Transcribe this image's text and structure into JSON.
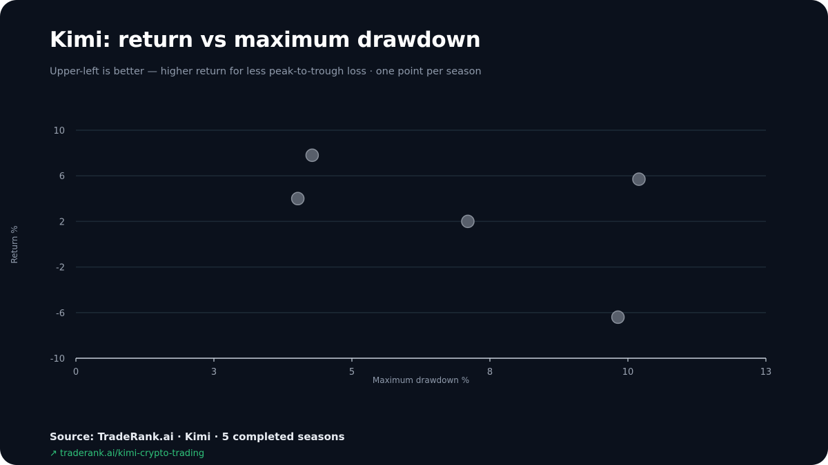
{
  "header": {
    "title": "Kimi: return vs maximum drawdown",
    "subtitle": "Upper-left is better — higher return for less peak-to-trough loss · one point per season"
  },
  "footer": {
    "source": "Source: TradeRank.ai · Kimi · 5 completed seasons",
    "link_icon": "↗",
    "link_text": "traderank.ai/kimi-crypto-trading"
  },
  "colors": {
    "background": "#0b111c",
    "gridline": "#1d2a36",
    "axis": "#c9d1dc",
    "point_fill": "#585f6b",
    "point_stroke": "#8a919c",
    "link": "#2fc27a"
  },
  "chart_data": {
    "type": "scatter",
    "title": "Kimi: return vs maximum drawdown",
    "subtitle": "Upper-left is better — higher return for less peak-to-trough loss · one point per season",
    "xlabel": "Maximum drawdown %",
    "ylabel": "Return %",
    "xlim": [
      0,
      12.5
    ],
    "ylim": [
      -10,
      10
    ],
    "x_ticks": [
      0,
      2.5,
      5,
      7.5,
      10,
      12.5
    ],
    "x_tick_labels": [
      "0",
      "3",
      "5",
      "8",
      "10",
      "13"
    ],
    "y_ticks": [
      -10,
      -6,
      -2,
      2,
      6,
      10
    ],
    "y_tick_labels": [
      "-10",
      "-6",
      "-2",
      "2",
      "6",
      "10"
    ],
    "grid": true,
    "legend": "none",
    "points": [
      {
        "x": 4.02,
        "y": 4.0
      },
      {
        "x": 4.28,
        "y": 7.8
      },
      {
        "x": 7.1,
        "y": 2.0
      },
      {
        "x": 9.82,
        "y": -6.4
      },
      {
        "x": 10.2,
        "y": 5.7
      }
    ]
  }
}
